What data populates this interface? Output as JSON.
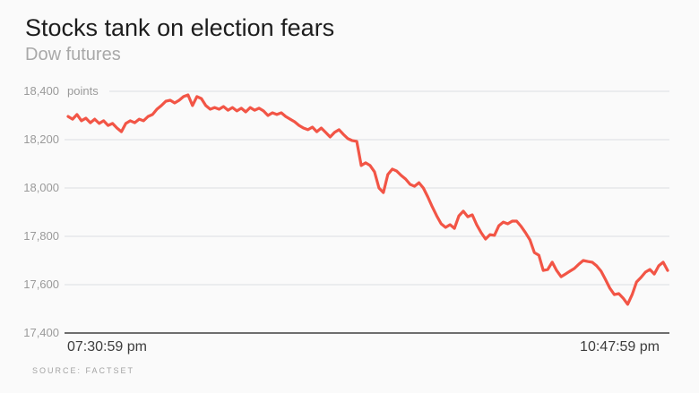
{
  "header": {
    "title": "Stocks tank on election fears",
    "subtitle": "Dow futures"
  },
  "source": {
    "label": "SOURCE: FACTSET"
  },
  "chart_data": {
    "type": "line",
    "title": "Stocks tank on election fears",
    "subtitle": "Dow futures",
    "unit_label": "points",
    "ylabel": "points",
    "xlabel": "",
    "ylim": [
      17400,
      18400
    ],
    "y_ticks": [
      18400,
      18200,
      18000,
      17800,
      17600,
      17400
    ],
    "y_tick_labels": [
      "18,400",
      "18,200",
      "18,000",
      "17,800",
      "17,600",
      "17,400"
    ],
    "x_start_label": "07:30:59 pm",
    "x_end_label": "10:47:59 pm",
    "grid": true,
    "legend": false,
    "colors": {
      "line": "#f25546",
      "grid": "#dcdfe2",
      "axis": "#6e6e6e",
      "background": "#fafafa"
    },
    "values": [
      18296,
      18285,
      18304,
      18278,
      18289,
      18270,
      18285,
      18267,
      18278,
      18259,
      18267,
      18248,
      18233,
      18267,
      18278,
      18270,
      18285,
      18278,
      18296,
      18304,
      18326,
      18341,
      18359,
      18363,
      18352,
      18363,
      18378,
      18385,
      18341,
      18378,
      18370,
      18341,
      18326,
      18333,
      18326,
      18337,
      18322,
      18333,
      18319,
      18330,
      18315,
      18333,
      18322,
      18330,
      18319,
      18300,
      18311,
      18304,
      18311,
      18296,
      18285,
      18274,
      18259,
      18248,
      18241,
      18252,
      18233,
      18248,
      18230,
      18211,
      18230,
      18241,
      18222,
      18204,
      18196,
      18193,
      18093,
      18104,
      18093,
      18067,
      18000,
      17981,
      18056,
      18078,
      18070,
      18052,
      18037,
      18015,
      18007,
      18022,
      18000,
      17963,
      17922,
      17885,
      17852,
      17837,
      17848,
      17833,
      17885,
      17904,
      17881,
      17889,
      17848,
      17815,
      17789,
      17807,
      17804,
      17844,
      17859,
      17852,
      17863,
      17863,
      17841,
      17815,
      17785,
      17733,
      17722,
      17659,
      17663,
      17693,
      17659,
      17633,
      17644,
      17656,
      17667,
      17685,
      17700,
      17696,
      17693,
      17678,
      17656,
      17622,
      17585,
      17559,
      17563,
      17544,
      17519,
      17559,
      17611,
      17630,
      17652,
      17663,
      17644,
      17678,
      17693,
      17659
    ]
  }
}
